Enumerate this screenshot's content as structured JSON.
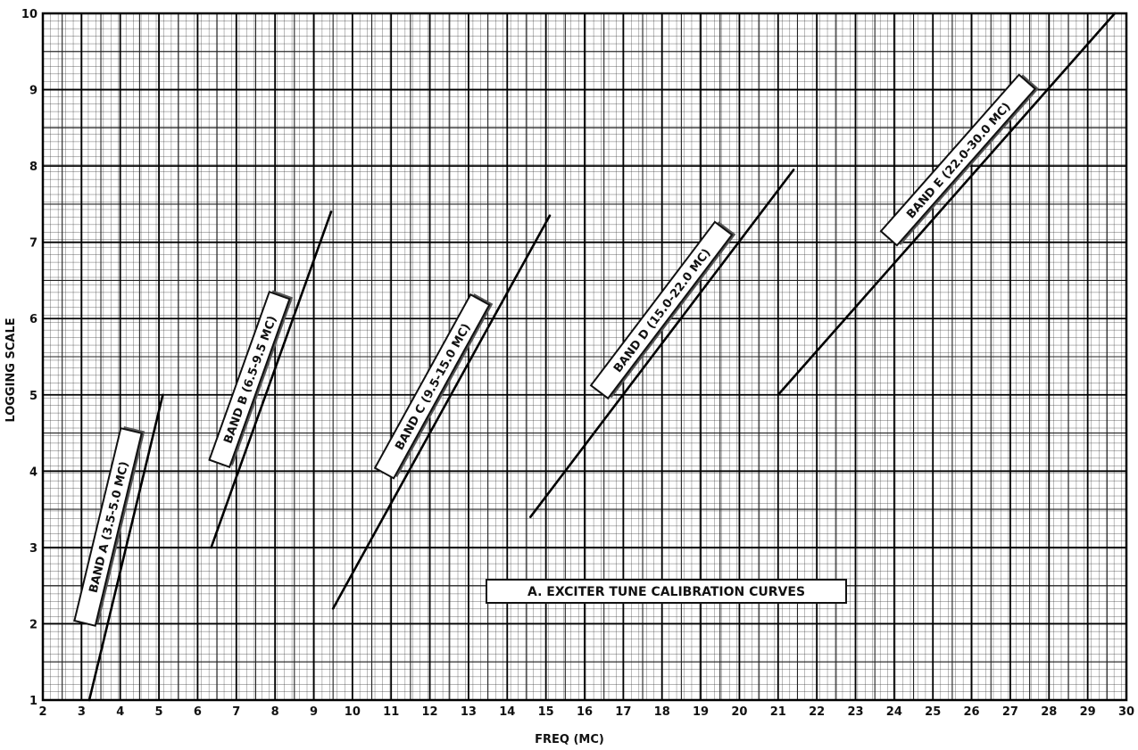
{
  "chart_data": {
    "type": "line",
    "title": "",
    "caption": "A. EXCITER TUNE CALIBRATION CURVES",
    "xlabel": "FREQ (MC)",
    "ylabel": "LOGGING SCALE",
    "xlim": [
      2,
      30
    ],
    "ylim": [
      1,
      10
    ],
    "x_ticks": [
      "2",
      "3",
      "4",
      "5",
      "6",
      "7",
      "8",
      "9",
      "10",
      "11",
      "12",
      "13",
      "14",
      "15",
      "16",
      "17",
      "18",
      "19",
      "20",
      "21",
      "22",
      "23",
      "24",
      "25",
      "26",
      "27",
      "28",
      "29",
      "30"
    ],
    "y_ticks": [
      "1",
      "2",
      "3",
      "4",
      "5",
      "6",
      "7",
      "8",
      "9",
      "10"
    ],
    "grid": true,
    "series": [
      {
        "name": "BAND A (3.5-5.0 MC)",
        "points": [
          [
            3.2,
            1.0
          ],
          [
            5.1,
            5.0
          ]
        ]
      },
      {
        "name": "BAND B (6.5-9.5 MC)",
        "points": [
          [
            6.35,
            3.0
          ],
          [
            9.45,
            7.4
          ]
        ]
      },
      {
        "name": "BAND C (9.5-15.0 MC)",
        "points": [
          [
            9.5,
            2.2
          ],
          [
            15.1,
            7.35
          ]
        ]
      },
      {
        "name": "BAND D (15.0-22.0 MC)",
        "points": [
          [
            14.6,
            3.4
          ],
          [
            21.4,
            7.95
          ]
        ]
      },
      {
        "name": "BAND E (22.0-30.0 MC)",
        "points": [
          [
            21.0,
            5.0
          ],
          [
            29.7,
            10.0
          ]
        ]
      }
    ]
  }
}
